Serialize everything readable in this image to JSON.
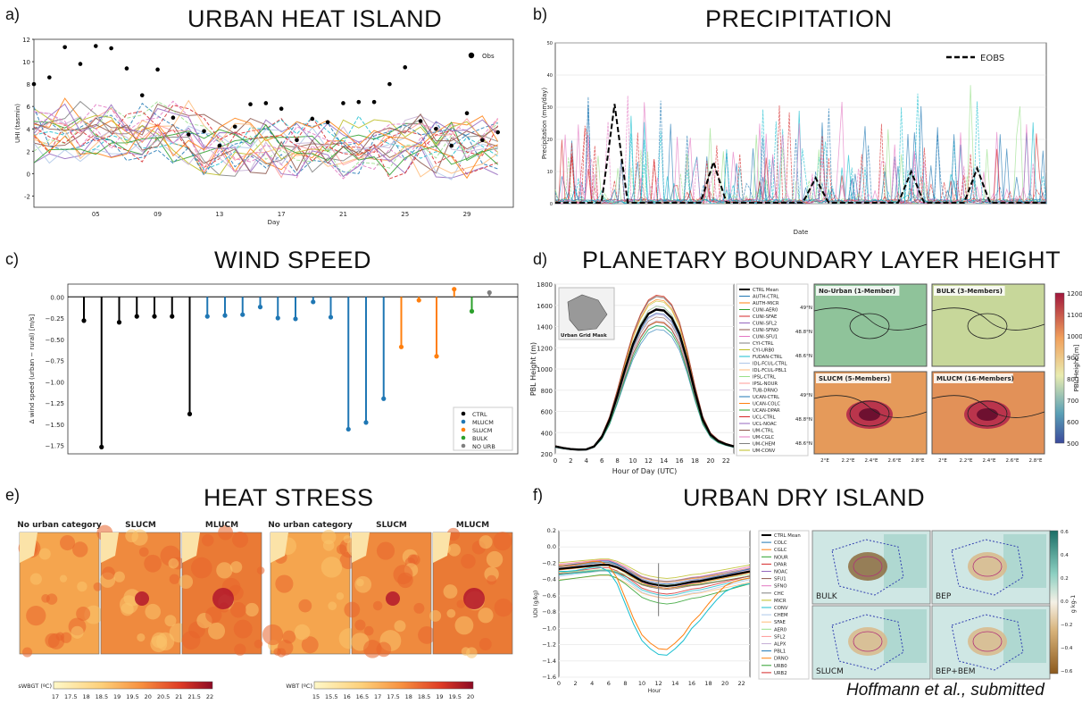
{
  "panels": {
    "a": {
      "label": "a)",
      "title": "URBAN HEAT ISLAND"
    },
    "b": {
      "label": "b)",
      "title": "PRECIPITATION"
    },
    "c": {
      "label": "c)",
      "title": "WIND SPEED"
    },
    "d": {
      "label": "d)",
      "title": "PLANETARY BOUNDARY LAYER HEIGHT"
    },
    "e": {
      "label": "e)",
      "title": "HEAT STRESS"
    },
    "f": {
      "label": "f)",
      "title": "URBAN DRY ISLAND"
    }
  },
  "citation": "Hoffmann et al., submitted",
  "chart_data": [
    {
      "type": "line",
      "id": "uhi",
      "ylabel": "UHI (tasmin)",
      "xlabel": "Day",
      "xticks": [
        "05",
        "09",
        "13",
        "17",
        "21",
        "25",
        "29"
      ],
      "xtick_values": [
        5,
        9,
        13,
        17,
        21,
        25,
        29
      ],
      "ylim": [
        -3,
        12
      ],
      "yticks": [
        -2,
        0,
        2,
        4,
        6,
        8,
        10,
        12
      ],
      "xlim": [
        1,
        32
      ],
      "legend": [
        "Obs"
      ],
      "obs_days": [
        1,
        2,
        3,
        4,
        5,
        6,
        7,
        8,
        9,
        10,
        11,
        12,
        13,
        14,
        15,
        16,
        17,
        18,
        19,
        20,
        21,
        22,
        23,
        24,
        25,
        26,
        27,
        28,
        29,
        30,
        31
      ],
      "obs": [
        8.0,
        8.6,
        11.3,
        9.8,
        11.4,
        11.2,
        9.4,
        7.0,
        9.3,
        5.0,
        3.5,
        3.8,
        2.5,
        4.2,
        6.2,
        6.3,
        5.8,
        3.0,
        4.9,
        4.6,
        6.3,
        6.4,
        6.4,
        8.0,
        9.5,
        4.7,
        4.0,
        2.5,
        5.4,
        3.0,
        3.7
      ]
    },
    {
      "type": "line",
      "id": "precip",
      "ylabel": "Precipitation (mm/day)",
      "xlabel": "Date",
      "ylim": [
        0,
        50
      ],
      "yticks": [
        0,
        10,
        20,
        30,
        40,
        50
      ],
      "legend": [
        "EOBS"
      ],
      "eobs_peaks": [
        {
          "day": 18,
          "value": 31
        },
        {
          "day": 48,
          "value": 13
        },
        {
          "day": 79,
          "value": 8
        },
        {
          "day": 108,
          "value": 10
        },
        {
          "day": 128,
          "value": 11
        }
      ]
    },
    {
      "type": "bar",
      "id": "wind",
      "ylabel": "Δ wind speed (urban − rural) [m/s]",
      "ylim": [
        -1.85,
        0.15
      ],
      "yticks": [
        0.0,
        -0.25,
        -0.5,
        -0.75,
        -1.0,
        -1.25,
        -1.5,
        -1.75
      ],
      "ytick_labels": [
        "0.00",
        "−0.25",
        "−0.50",
        "−0.75",
        "−1.00",
        "−1.25",
        "−1.50",
        "−1.75"
      ],
      "legend": [
        {
          "name": "CTRL",
          "color": "#000000"
        },
        {
          "name": "MLUCM",
          "color": "#1f77b4"
        },
        {
          "name": "SLUCM",
          "color": "#ff7f0e"
        },
        {
          "name": "BULK",
          "color": "#2ca02c"
        },
        {
          "name": "NO URB",
          "color": "#7f7f7f"
        }
      ],
      "values": [
        -0.28,
        -1.77,
        -0.3,
        -0.23,
        -0.23,
        -0.23,
        -1.38,
        -0.23,
        -0.22,
        -0.21,
        -0.12,
        -0.25,
        -0.26,
        -0.06,
        -0.24,
        -1.56,
        -1.48,
        -1.2,
        -0.59,
        -0.04,
        -0.7,
        0.09,
        -0.17,
        0.05
      ],
      "groups": [
        "CTRL",
        "CTRL",
        "CTRL",
        "CTRL",
        "CTRL",
        "CTRL",
        "CTRL",
        "MLUCM",
        "MLUCM",
        "MLUCM",
        "MLUCM",
        "MLUCM",
        "MLUCM",
        "MLUCM",
        "MLUCM",
        "MLUCM",
        "MLUCM",
        "MLUCM",
        "SLUCM",
        "SLUCM",
        "SLUCM",
        "SLUCM",
        "BULK",
        "NO URB"
      ]
    },
    {
      "type": "line",
      "id": "pbl",
      "ylabel": "PBL Height (m)",
      "xlabel": "Hour of Day (UTC)",
      "xlim": [
        0,
        23
      ],
      "xticks": [
        0,
        2,
        4,
        6,
        8,
        10,
        12,
        14,
        16,
        18,
        20,
        22
      ],
      "ylim": [
        200,
        1800
      ],
      "yticks": [
        200,
        400,
        600,
        800,
        1000,
        1200,
        1400,
        1600,
        1800
      ],
      "inset_label": "Urban Grid Mask",
      "hours": [
        0,
        1,
        2,
        3,
        4,
        5,
        6,
        7,
        8,
        9,
        10,
        11,
        12,
        13,
        14,
        15,
        16,
        17,
        18,
        19,
        20,
        21,
        22,
        23
      ],
      "ctrl_mean": [
        270,
        255,
        245,
        240,
        242,
        270,
        360,
        520,
        750,
        1000,
        1230,
        1400,
        1520,
        1560,
        1550,
        1480,
        1330,
        1080,
        780,
        520,
        380,
        320,
        290,
        270
      ],
      "legend": [
        "CTRL Mean",
        "AUTH-CTRL",
        "AUTH-MICR",
        "CUNI-AER0",
        "CUNI-SFAE",
        "CUNI-SFL2",
        "CUNI-SFNO",
        "CUNI-SFU1",
        "CYI-CTRL",
        "CYI-URB0",
        "FUDAN-CTRL",
        "IDL-FCUL-CTRL",
        "IDL-FCUL-PBL1",
        "IPSL-CTRL",
        "IPSL-NOUR",
        "TUB-DRNO",
        "UCAN-CTRL",
        "UCAN-COLC",
        "UCAN-DPAR",
        "UCL-CTRL",
        "UCL-NOAC",
        "UM-CTRL",
        "UM-CGLC",
        "UM-CHEM",
        "UM-CONV"
      ],
      "maps": [
        "No-Urban (1-Member)",
        "BULK (3-Members)",
        "SLUCM (5-Members)",
        "MLUCM (16-Members)"
      ],
      "map_lat_ticks": [
        "49°N",
        "48.8°N",
        "48.6°N"
      ],
      "map_lon_ticks": [
        "2°E",
        "2.2°E",
        "2.4°E",
        "2.6°E",
        "2.8°E"
      ],
      "colorbar_label": "PBL Height [m]",
      "colorbar_ticks": [
        "1200",
        "1100",
        "1000",
        "900",
        "800",
        "700",
        "600",
        "500"
      ]
    },
    {
      "type": "heatmap",
      "id": "heat",
      "maps": [
        "No urban category",
        "SLUCM",
        "MLUCM",
        "No urban category",
        "SLUCM",
        "MLUCM"
      ],
      "scale1_label": "sWBGT (ºC)",
      "scale1_ticks": [
        "17",
        "17.5",
        "18",
        "18.5",
        "19",
        "19.5",
        "20",
        "20.5",
        "21",
        "21.5",
        "22"
      ],
      "scale2_label": "WBT (ºC)",
      "scale2_ticks": [
        "15",
        "15.5",
        "16",
        "16.5",
        "17",
        "17.5",
        "18",
        "18.5",
        "19",
        "19.5",
        "20"
      ]
    },
    {
      "type": "line",
      "id": "udi",
      "ylabel": "UDI (g/kg)",
      "xlabel": "Hour",
      "xlim": [
        0,
        23
      ],
      "xticks": [
        0,
        2,
        4,
        6,
        8,
        10,
        12,
        14,
        16,
        18,
        20,
        22
      ],
      "ylim": [
        -1.6,
        0.2
      ],
      "yticks": [
        0.2,
        0.0,
        -0.2,
        -0.4,
        -0.6,
        -0.8,
        -1.0,
        -1.2,
        -1.4,
        -1.6
      ],
      "ytick_labels": [
        "0.2",
        "0.0",
        "−0.2",
        "−0.4",
        "−0.6",
        "−0.8",
        "−1.0",
        "−1.2",
        "−1.4",
        "−1.6"
      ],
      "hours": [
        0,
        1,
        2,
        3,
        4,
        5,
        6,
        7,
        8,
        9,
        10,
        11,
        12,
        13,
        14,
        15,
        16,
        17,
        18,
        19,
        20,
        21,
        22,
        23
      ],
      "ctrl_mean": [
        -0.27,
        -0.26,
        -0.25,
        -0.24,
        -0.23,
        -0.22,
        -0.22,
        -0.25,
        -0.3,
        -0.36,
        -0.42,
        -0.45,
        -0.47,
        -0.48,
        -0.47,
        -0.45,
        -0.43,
        -0.42,
        -0.4,
        -0.38,
        -0.36,
        -0.34,
        -0.32,
        -0.3
      ],
      "legend": [
        "CTRL Mean",
        "COLC",
        "CGLC",
        "NOUR",
        "DPAR",
        "NOAC",
        "SFU1",
        "SFNO",
        "CHC",
        "MICR",
        "CONV",
        "CHEM",
        "SFAE",
        "AER0",
        "SFL2",
        "ALPX",
        "PBL1",
        "DRNO",
        "URB0",
        "URB2"
      ],
      "maps": [
        "BULK",
        "BEP",
        "SLUCM",
        "BEP+BEM"
      ],
      "colorbar_label": "g kg-1",
      "colorbar_ticks": [
        "0.6",
        "0.4",
        "0.2",
        "0.0",
        "−0.2",
        "−0.4",
        "−0.6"
      ]
    }
  ]
}
